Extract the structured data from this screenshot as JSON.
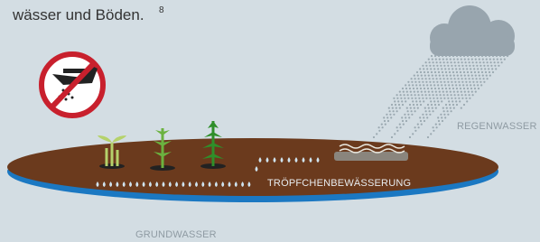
{
  "intro": {
    "text": "wässer und Böden.",
    "footnote": "8"
  },
  "labels": {
    "rain": "REGENWASSER",
    "drip": "TRÖPFCHENBEWÄSSERUNG",
    "groundwater": "GRUNDWASSER"
  }
}
